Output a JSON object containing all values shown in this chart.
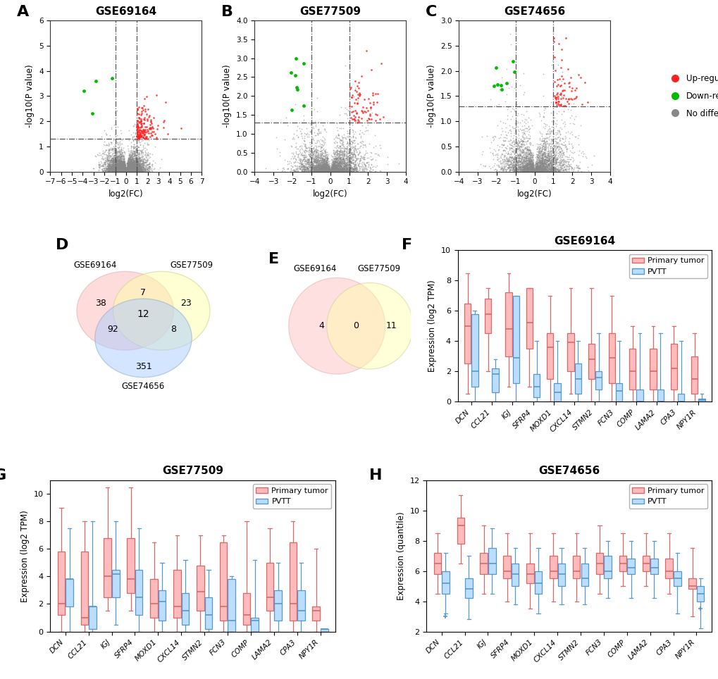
{
  "volcano_A": {
    "title": "GSE69164",
    "xlabel": "log2(FC)",
    "ylabel": "-log10(P value)",
    "xlim": [
      -7,
      7
    ],
    "ylim": [
      0,
      6
    ],
    "xline": [
      -1,
      1
    ],
    "yline": 1.3,
    "xticks": [
      -7,
      -6,
      -5,
      -4,
      -3,
      -2,
      -1,
      0,
      1,
      2,
      3,
      4,
      5,
      6,
      7
    ]
  },
  "volcano_B": {
    "title": "GSE77509",
    "xlabel": "log2(FC)",
    "ylabel": "-log10(P value)",
    "xlim": [
      -4,
      4
    ],
    "ylim": [
      0,
      4
    ],
    "xline": [
      -1,
      1
    ],
    "yline": 1.3,
    "xticks": [
      -4,
      -3,
      -2,
      -1,
      0,
      1,
      2,
      3,
      4
    ]
  },
  "volcano_C": {
    "title": "GSE74656",
    "xlabel": "log2(FC)",
    "ylabel": "-log10(P value)",
    "xlim": [
      -4,
      4
    ],
    "ylim": [
      0,
      3
    ],
    "xline": [
      -1,
      1
    ],
    "yline": 1.3,
    "xticks": [
      -4,
      -3,
      -2,
      -1,
      0,
      1,
      2,
      3,
      4
    ]
  },
  "venn_D": {
    "label_A": "GSE69164",
    "label_B": "GSE77509",
    "label_C": "GSE74656",
    "only_A": 38,
    "only_B": 23,
    "only_C": 351,
    "AB": 7,
    "AC": 92,
    "BC": 8,
    "ABC": 12
  },
  "venn_E": {
    "label_A": "GSE69164",
    "label_B": "GSE77509",
    "only_A": 4,
    "only_B": 11,
    "AB": 0
  },
  "boxplot_genes": [
    "DCN",
    "CCL21",
    "IGJ",
    "SFRP4",
    "MOXD1",
    "CXCL14",
    "STMN2",
    "FCN3",
    "COMP",
    "LAMA2",
    "CPA3",
    "NPY1R"
  ],
  "boxplot_F": {
    "title": "GSE69164",
    "ylabel": "Expression (log2 TPM)",
    "ylim": [
      0,
      10
    ],
    "pt_med": [
      5.0,
      5.8,
      4.8,
      5.2,
      3.6,
      3.9,
      2.8,
      2.9,
      2.0,
      2.0,
      2.2,
      1.5
    ],
    "pt_q1": [
      2.5,
      4.5,
      3.0,
      3.5,
      1.5,
      2.0,
      1.5,
      1.2,
      0.8,
      0.8,
      0.8,
      0.5
    ],
    "pt_q3": [
      6.5,
      6.8,
      7.2,
      7.5,
      4.5,
      4.5,
      3.8,
      4.5,
      3.5,
      3.5,
      3.8,
      3.0
    ],
    "pt_wlo": [
      0.5,
      2.0,
      1.0,
      1.0,
      0.0,
      0.5,
      0.0,
      0.0,
      0.0,
      0.0,
      0.0,
      0.0
    ],
    "pt_whi": [
      8.5,
      7.5,
      8.5,
      7.5,
      7.0,
      7.5,
      7.5,
      7.0,
      5.0,
      5.0,
      5.0,
      4.5
    ],
    "pvtt_med": [
      2.0,
      1.8,
      2.9,
      1.0,
      0.6,
      1.5,
      1.6,
      0.7,
      0.0,
      0.0,
      0.0,
      0.1
    ],
    "pvtt_q1": [
      1.0,
      0.6,
      1.2,
      0.3,
      0.0,
      0.5,
      0.8,
      0.0,
      0.0,
      0.0,
      0.0,
      0.0
    ],
    "pvtt_q3": [
      5.8,
      2.2,
      7.0,
      1.8,
      1.2,
      2.5,
      2.0,
      1.2,
      0.8,
      0.8,
      0.5,
      0.2
    ],
    "pvtt_wlo": [
      0.0,
      0.0,
      0.0,
      0.0,
      0.0,
      0.0,
      0.0,
      0.0,
      0.0,
      0.0,
      0.0,
      0.0
    ],
    "pvtt_whi": [
      6.0,
      2.8,
      7.0,
      4.0,
      4.0,
      4.0,
      4.5,
      4.0,
      4.5,
      4.5,
      4.0,
      0.5
    ]
  },
  "boxplot_G": {
    "title": "GSE77509",
    "ylabel": "Expression (log2 TPM)",
    "ylim": [
      0,
      11
    ],
    "pt_med": [
      2.0,
      1.0,
      4.0,
      3.8,
      2.0,
      1.8,
      2.9,
      1.8,
      1.2,
      2.5,
      2.0,
      1.5
    ],
    "pt_q1": [
      1.2,
      0.5,
      2.5,
      2.8,
      1.0,
      1.0,
      1.5,
      0.8,
      0.5,
      1.5,
      0.8,
      0.8
    ],
    "pt_q3": [
      5.8,
      5.8,
      6.8,
      6.8,
      3.8,
      4.5,
      4.8,
      6.5,
      2.8,
      5.0,
      6.5,
      1.8
    ],
    "pt_wlo": [
      0.0,
      0.0,
      1.5,
      1.5,
      0.0,
      0.0,
      0.0,
      0.0,
      0.0,
      0.0,
      0.0,
      0.0
    ],
    "pt_whi": [
      9.0,
      8.0,
      10.5,
      10.5,
      6.5,
      7.0,
      7.0,
      7.0,
      8.0,
      7.5,
      8.0,
      6.0
    ],
    "pvtt_med": [
      3.8,
      1.8,
      4.2,
      2.5,
      2.2,
      1.5,
      1.2,
      0.8,
      0.8,
      2.0,
      1.5,
      0.2
    ],
    "pvtt_q1": [
      1.8,
      0.2,
      2.5,
      1.2,
      0.8,
      0.5,
      0.2,
      0.0,
      0.0,
      0.8,
      0.8,
      0.0
    ],
    "pvtt_q3": [
      3.8,
      1.8,
      4.5,
      4.5,
      3.0,
      2.8,
      2.5,
      3.8,
      1.0,
      3.0,
      3.0,
      0.2
    ],
    "pvtt_wlo": [
      0.0,
      0.0,
      0.5,
      0.0,
      0.0,
      0.0,
      0.0,
      0.0,
      0.0,
      0.0,
      0.0,
      0.0
    ],
    "pvtt_whi": [
      7.5,
      8.0,
      8.0,
      7.5,
      5.0,
      5.2,
      4.5,
      4.0,
      5.2,
      5.0,
      5.0,
      0.2
    ]
  },
  "boxplot_H": {
    "title": "GSE74656",
    "ylabel": "Expression (quantile)",
    "ylim": [
      2,
      12
    ],
    "pt_med": [
      6.5,
      9.0,
      6.5,
      6.0,
      5.8,
      6.0,
      6.0,
      6.5,
      6.5,
      6.5,
      6.0,
      5.0
    ],
    "pt_q1": [
      5.8,
      7.8,
      5.8,
      5.5,
      5.2,
      5.5,
      5.5,
      5.8,
      6.0,
      6.0,
      5.5,
      4.8
    ],
    "pt_q3": [
      7.2,
      9.5,
      7.2,
      7.0,
      6.5,
      7.0,
      7.0,
      7.2,
      7.0,
      7.0,
      6.8,
      5.5
    ],
    "pt_wlo": [
      4.5,
      6.5,
      4.5,
      4.0,
      3.5,
      4.0,
      4.0,
      4.5,
      5.0,
      5.0,
      4.5,
      3.0
    ],
    "pt_whi": [
      8.5,
      11.0,
      9.0,
      8.5,
      8.5,
      8.5,
      8.5,
      9.0,
      8.5,
      8.5,
      8.5,
      7.5
    ],
    "pvtt_med": [
      5.2,
      4.8,
      6.5,
      5.8,
      5.2,
      5.8,
      5.5,
      6.0,
      6.2,
      6.2,
      5.5,
      4.5
    ],
    "pvtt_q1": [
      4.5,
      4.2,
      5.8,
      5.0,
      4.5,
      5.0,
      5.0,
      5.5,
      5.8,
      5.8,
      5.0,
      4.0
    ],
    "pvtt_q3": [
      6.0,
      5.5,
      7.5,
      6.5,
      6.0,
      6.5,
      6.5,
      7.0,
      6.8,
      6.8,
      6.0,
      5.0
    ],
    "pvtt_wlo": [
      3.2,
      2.8,
      4.5,
      3.8,
      3.2,
      3.8,
      3.8,
      4.2,
      4.2,
      4.2,
      3.2,
      2.2
    ],
    "pvtt_whi": [
      7.2,
      7.0,
      8.8,
      7.5,
      7.5,
      7.5,
      7.5,
      8.0,
      8.0,
      8.0,
      7.2,
      5.5
    ],
    "pvtt_outliers_idx": [
      0,
      11
    ],
    "pvtt_outliers_val": [
      3.0,
      3.5
    ]
  },
  "colors": {
    "red": "#FF2020",
    "green": "#00BB00",
    "gray": "#888888",
    "pt_face": "#FFBBBB",
    "pt_edge": "#DD6666",
    "pvtt_face": "#BBDDFF",
    "pvtt_edge": "#5599CC"
  }
}
